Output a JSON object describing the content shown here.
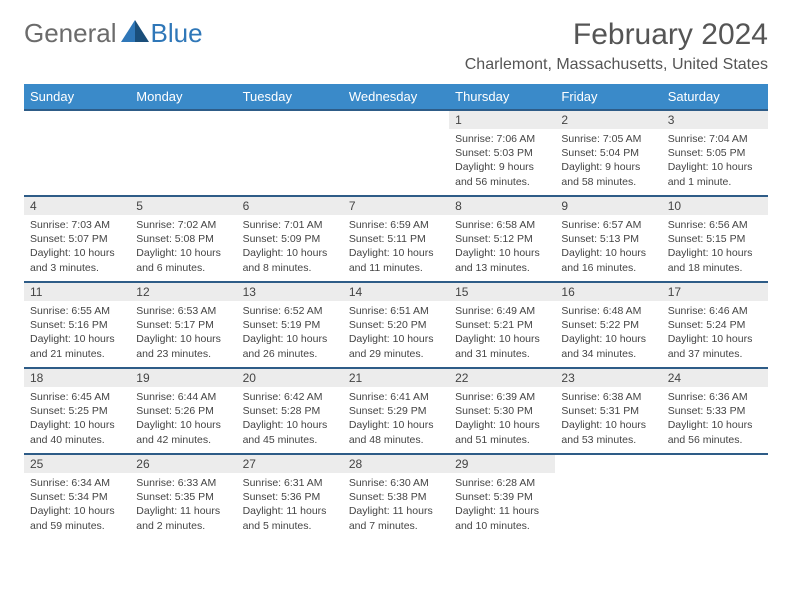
{
  "logo": {
    "general": "General",
    "blue": "Blue"
  },
  "title": "February 2024",
  "location": "Charlemont, Massachusetts, United States",
  "colors": {
    "header_bg": "#3a8ac9",
    "row_border": "#2e5c87",
    "daynum_bg": "#ececec",
    "logo_gray": "#6b6b6b",
    "logo_blue": "#2f77b8"
  },
  "weekdays": [
    "Sunday",
    "Monday",
    "Tuesday",
    "Wednesday",
    "Thursday",
    "Friday",
    "Saturday"
  ],
  "weeks": [
    [
      null,
      null,
      null,
      null,
      {
        "n": "1",
        "sr": "Sunrise: 7:06 AM",
        "ss": "Sunset: 5:03 PM",
        "dl": "Daylight: 9 hours and 56 minutes."
      },
      {
        "n": "2",
        "sr": "Sunrise: 7:05 AM",
        "ss": "Sunset: 5:04 PM",
        "dl": "Daylight: 9 hours and 58 minutes."
      },
      {
        "n": "3",
        "sr": "Sunrise: 7:04 AM",
        "ss": "Sunset: 5:05 PM",
        "dl": "Daylight: 10 hours and 1 minute."
      }
    ],
    [
      {
        "n": "4",
        "sr": "Sunrise: 7:03 AM",
        "ss": "Sunset: 5:07 PM",
        "dl": "Daylight: 10 hours and 3 minutes."
      },
      {
        "n": "5",
        "sr": "Sunrise: 7:02 AM",
        "ss": "Sunset: 5:08 PM",
        "dl": "Daylight: 10 hours and 6 minutes."
      },
      {
        "n": "6",
        "sr": "Sunrise: 7:01 AM",
        "ss": "Sunset: 5:09 PM",
        "dl": "Daylight: 10 hours and 8 minutes."
      },
      {
        "n": "7",
        "sr": "Sunrise: 6:59 AM",
        "ss": "Sunset: 5:11 PM",
        "dl": "Daylight: 10 hours and 11 minutes."
      },
      {
        "n": "8",
        "sr": "Sunrise: 6:58 AM",
        "ss": "Sunset: 5:12 PM",
        "dl": "Daylight: 10 hours and 13 minutes."
      },
      {
        "n": "9",
        "sr": "Sunrise: 6:57 AM",
        "ss": "Sunset: 5:13 PM",
        "dl": "Daylight: 10 hours and 16 minutes."
      },
      {
        "n": "10",
        "sr": "Sunrise: 6:56 AM",
        "ss": "Sunset: 5:15 PM",
        "dl": "Daylight: 10 hours and 18 minutes."
      }
    ],
    [
      {
        "n": "11",
        "sr": "Sunrise: 6:55 AM",
        "ss": "Sunset: 5:16 PM",
        "dl": "Daylight: 10 hours and 21 minutes."
      },
      {
        "n": "12",
        "sr": "Sunrise: 6:53 AM",
        "ss": "Sunset: 5:17 PM",
        "dl": "Daylight: 10 hours and 23 minutes."
      },
      {
        "n": "13",
        "sr": "Sunrise: 6:52 AM",
        "ss": "Sunset: 5:19 PM",
        "dl": "Daylight: 10 hours and 26 minutes."
      },
      {
        "n": "14",
        "sr": "Sunrise: 6:51 AM",
        "ss": "Sunset: 5:20 PM",
        "dl": "Daylight: 10 hours and 29 minutes."
      },
      {
        "n": "15",
        "sr": "Sunrise: 6:49 AM",
        "ss": "Sunset: 5:21 PM",
        "dl": "Daylight: 10 hours and 31 minutes."
      },
      {
        "n": "16",
        "sr": "Sunrise: 6:48 AM",
        "ss": "Sunset: 5:22 PM",
        "dl": "Daylight: 10 hours and 34 minutes."
      },
      {
        "n": "17",
        "sr": "Sunrise: 6:46 AM",
        "ss": "Sunset: 5:24 PM",
        "dl": "Daylight: 10 hours and 37 minutes."
      }
    ],
    [
      {
        "n": "18",
        "sr": "Sunrise: 6:45 AM",
        "ss": "Sunset: 5:25 PM",
        "dl": "Daylight: 10 hours and 40 minutes."
      },
      {
        "n": "19",
        "sr": "Sunrise: 6:44 AM",
        "ss": "Sunset: 5:26 PM",
        "dl": "Daylight: 10 hours and 42 minutes."
      },
      {
        "n": "20",
        "sr": "Sunrise: 6:42 AM",
        "ss": "Sunset: 5:28 PM",
        "dl": "Daylight: 10 hours and 45 minutes."
      },
      {
        "n": "21",
        "sr": "Sunrise: 6:41 AM",
        "ss": "Sunset: 5:29 PM",
        "dl": "Daylight: 10 hours and 48 minutes."
      },
      {
        "n": "22",
        "sr": "Sunrise: 6:39 AM",
        "ss": "Sunset: 5:30 PM",
        "dl": "Daylight: 10 hours and 51 minutes."
      },
      {
        "n": "23",
        "sr": "Sunrise: 6:38 AM",
        "ss": "Sunset: 5:31 PM",
        "dl": "Daylight: 10 hours and 53 minutes."
      },
      {
        "n": "24",
        "sr": "Sunrise: 6:36 AM",
        "ss": "Sunset: 5:33 PM",
        "dl": "Daylight: 10 hours and 56 minutes."
      }
    ],
    [
      {
        "n": "25",
        "sr": "Sunrise: 6:34 AM",
        "ss": "Sunset: 5:34 PM",
        "dl": "Daylight: 10 hours and 59 minutes."
      },
      {
        "n": "26",
        "sr": "Sunrise: 6:33 AM",
        "ss": "Sunset: 5:35 PM",
        "dl": "Daylight: 11 hours and 2 minutes."
      },
      {
        "n": "27",
        "sr": "Sunrise: 6:31 AM",
        "ss": "Sunset: 5:36 PM",
        "dl": "Daylight: 11 hours and 5 minutes."
      },
      {
        "n": "28",
        "sr": "Sunrise: 6:30 AM",
        "ss": "Sunset: 5:38 PM",
        "dl": "Daylight: 11 hours and 7 minutes."
      },
      {
        "n": "29",
        "sr": "Sunrise: 6:28 AM",
        "ss": "Sunset: 5:39 PM",
        "dl": "Daylight: 11 hours and 10 minutes."
      },
      null,
      null
    ]
  ]
}
